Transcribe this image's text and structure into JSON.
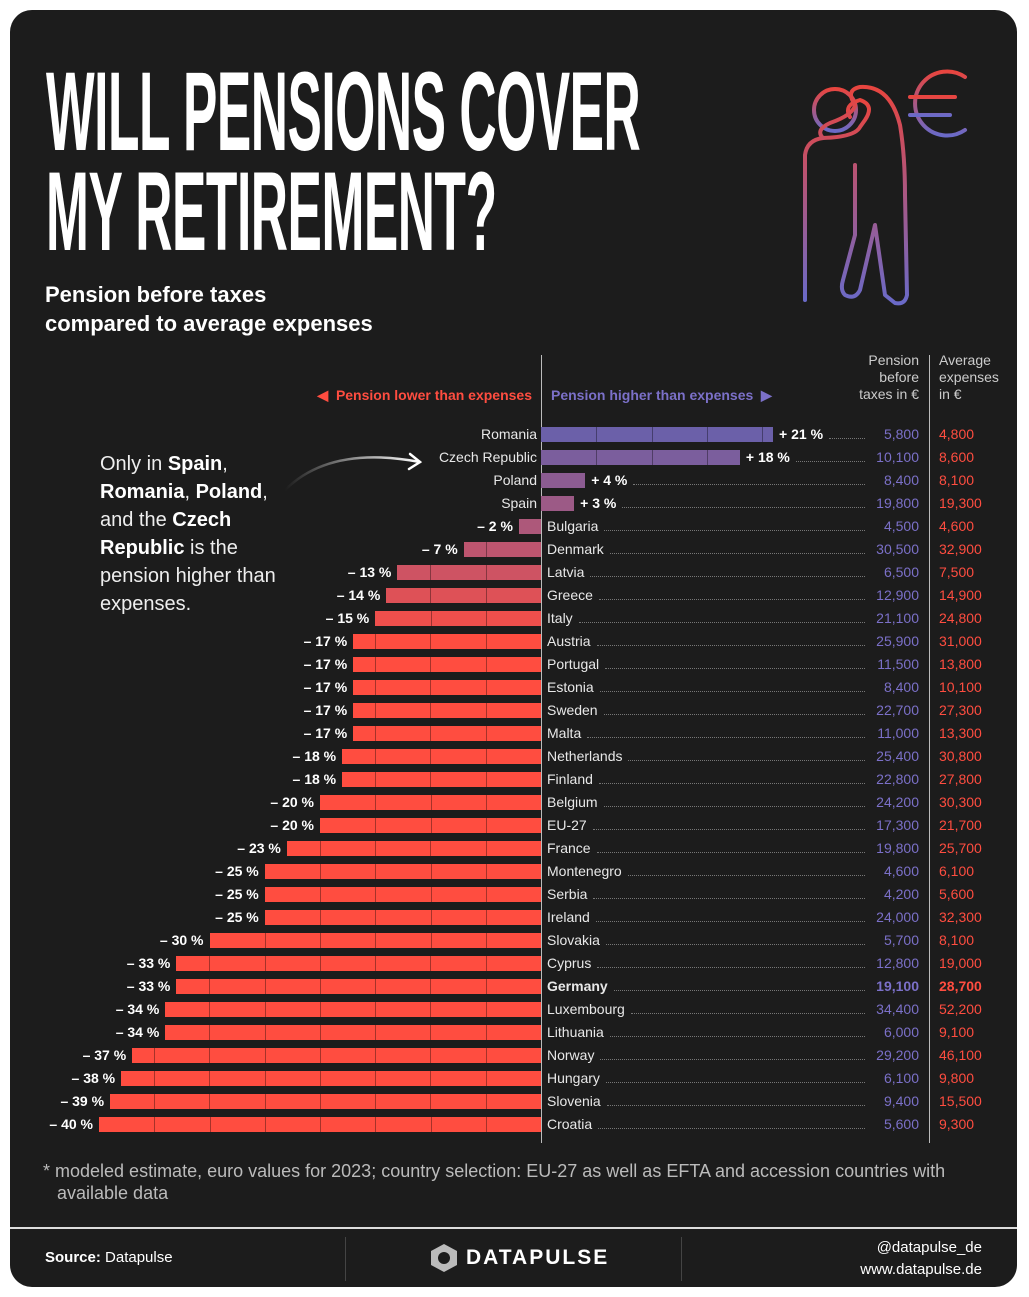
{
  "title_lines": [
    "WILL PENSIONS COVER",
    "MY RETIREMENT?"
  ],
  "subtitle_lines": [
    "Pension before taxes",
    "compared to average expenses"
  ],
  "legend": {
    "negative": "Pension lower than expenses",
    "positive": "Pension higher than expenses"
  },
  "columns": {
    "pension": [
      "Pension",
      "before",
      "taxes in €"
    ],
    "expenses": [
      "Average",
      "expenses",
      "in €"
    ]
  },
  "annotation": {
    "parts": [
      "Only in ",
      "Spain",
      ", ",
      "Romania",
      ", ",
      "Poland",
      ", and the ",
      "Czech Republic",
      " is the pension higher than expenses."
    ]
  },
  "colors": {
    "positive_top": "#6b60a9",
    "negative": "#ff4d40",
    "pension_text": "#7b70c8",
    "expenses_text": "#ff4d40",
    "background": "#1c1c1c"
  },
  "chart_data": {
    "type": "bar",
    "orientation": "horizontal-diverging",
    "unit": "%",
    "xlim": [
      -40,
      25
    ],
    "rows": [
      {
        "country": "Romania",
        "diff": 21,
        "label": "+ 21 %",
        "pension": "5,800",
        "expenses": "4,800"
      },
      {
        "country": "Czech Republic",
        "diff": 18,
        "label": "+ 18 %",
        "pension": "10,100",
        "expenses": "8,600"
      },
      {
        "country": "Poland",
        "diff": 4,
        "label": "+ 4 %",
        "pension": "8,400",
        "expenses": "8,100"
      },
      {
        "country": "Spain",
        "diff": 3,
        "label": "+ 3 %",
        "pension": "19,800",
        "expenses": "19,300"
      },
      {
        "country": "Bulgaria",
        "diff": -2,
        "label": "– 2 %",
        "pension": "4,500",
        "expenses": "4,600"
      },
      {
        "country": "Denmark",
        "diff": -7,
        "label": "– 7 %",
        "pension": "30,500",
        "expenses": "32,900"
      },
      {
        "country": "Latvia",
        "diff": -13,
        "label": "– 13 %",
        "pension": "6,500",
        "expenses": "7,500"
      },
      {
        "country": "Greece",
        "diff": -14,
        "label": "– 14 %",
        "pension": "12,900",
        "expenses": "14,900"
      },
      {
        "country": "Italy",
        "diff": -15,
        "label": "– 15 %",
        "pension": "21,100",
        "expenses": "24,800"
      },
      {
        "country": "Austria",
        "diff": -17,
        "label": "– 17 %",
        "pension": "25,900",
        "expenses": "31,000"
      },
      {
        "country": "Portugal",
        "diff": -17,
        "label": "– 17 %",
        "pension": "11,500",
        "expenses": "13,800"
      },
      {
        "country": "Estonia",
        "diff": -17,
        "label": "– 17 %",
        "pension": "8,400",
        "expenses": "10,100"
      },
      {
        "country": "Sweden",
        "diff": -17,
        "label": "– 17 %",
        "pension": "22,700",
        "expenses": "27,300"
      },
      {
        "country": "Malta",
        "diff": -17,
        "label": "– 17 %",
        "pension": "11,000",
        "expenses": "13,300"
      },
      {
        "country": "Netherlands",
        "diff": -18,
        "label": "– 18 %",
        "pension": "25,400",
        "expenses": "30,800"
      },
      {
        "country": "Finland",
        "diff": -18,
        "label": "– 18 %",
        "pension": "22,800",
        "expenses": "27,800"
      },
      {
        "country": "Belgium",
        "diff": -20,
        "label": "– 20 %",
        "pension": "24,200",
        "expenses": "30,300"
      },
      {
        "country": "EU-27",
        "diff": -20,
        "label": "– 20 %",
        "pension": "17,300",
        "expenses": "21,700"
      },
      {
        "country": "France",
        "diff": -23,
        "label": "– 23 %",
        "pension": "19,800",
        "expenses": "25,700"
      },
      {
        "country": "Montenegro",
        "diff": -25,
        "label": "– 25 %",
        "pension": "4,600",
        "expenses": "6,100"
      },
      {
        "country": "Serbia",
        "diff": -25,
        "label": "– 25 %",
        "pension": "4,200",
        "expenses": "5,600"
      },
      {
        "country": "Ireland",
        "diff": -25,
        "label": "– 25 %",
        "pension": "24,000",
        "expenses": "32,300"
      },
      {
        "country": "Slovakia",
        "diff": -30,
        "label": "– 30 %",
        "pension": "5,700",
        "expenses": "8,100"
      },
      {
        "country": "Cyprus",
        "diff": -33,
        "label": "– 33 %",
        "pension": "12,800",
        "expenses": "19,000"
      },
      {
        "country": "Germany",
        "diff": -33,
        "label": "– 33 %",
        "pension": "19,100",
        "expenses": "28,700",
        "highlight": true
      },
      {
        "country": "Luxembourg",
        "diff": -34,
        "label": "– 34 %",
        "pension": "34,400",
        "expenses": "52,200"
      },
      {
        "country": "Lithuania",
        "diff": -34,
        "label": "– 34 %",
        "pension": "6,000",
        "expenses": "9,100"
      },
      {
        "country": "Norway",
        "diff": -37,
        "label": "– 37 %",
        "pension": "29,200",
        "expenses": "46,100"
      },
      {
        "country": "Hungary",
        "diff": -38,
        "label": "– 38 %",
        "pension": "6,100",
        "expenses": "9,800"
      },
      {
        "country": "Slovenia",
        "diff": -39,
        "label": "– 39 %",
        "pension": "9,400",
        "expenses": "15,500"
      },
      {
        "country": "Croatia",
        "diff": -40,
        "label": "– 40 %",
        "pension": "5,600",
        "expenses": "9,300"
      }
    ]
  },
  "footnote": "* modeled estimate, euro values for 2023; country selection: EU-27 as well as EFTA and accession countries with available data",
  "footer": {
    "source_label": "Source:",
    "source_value": "Datapulse",
    "logo_text": "DATAPULSE",
    "handle": "@datapulse_de",
    "website": "www.datapulse.de"
  }
}
